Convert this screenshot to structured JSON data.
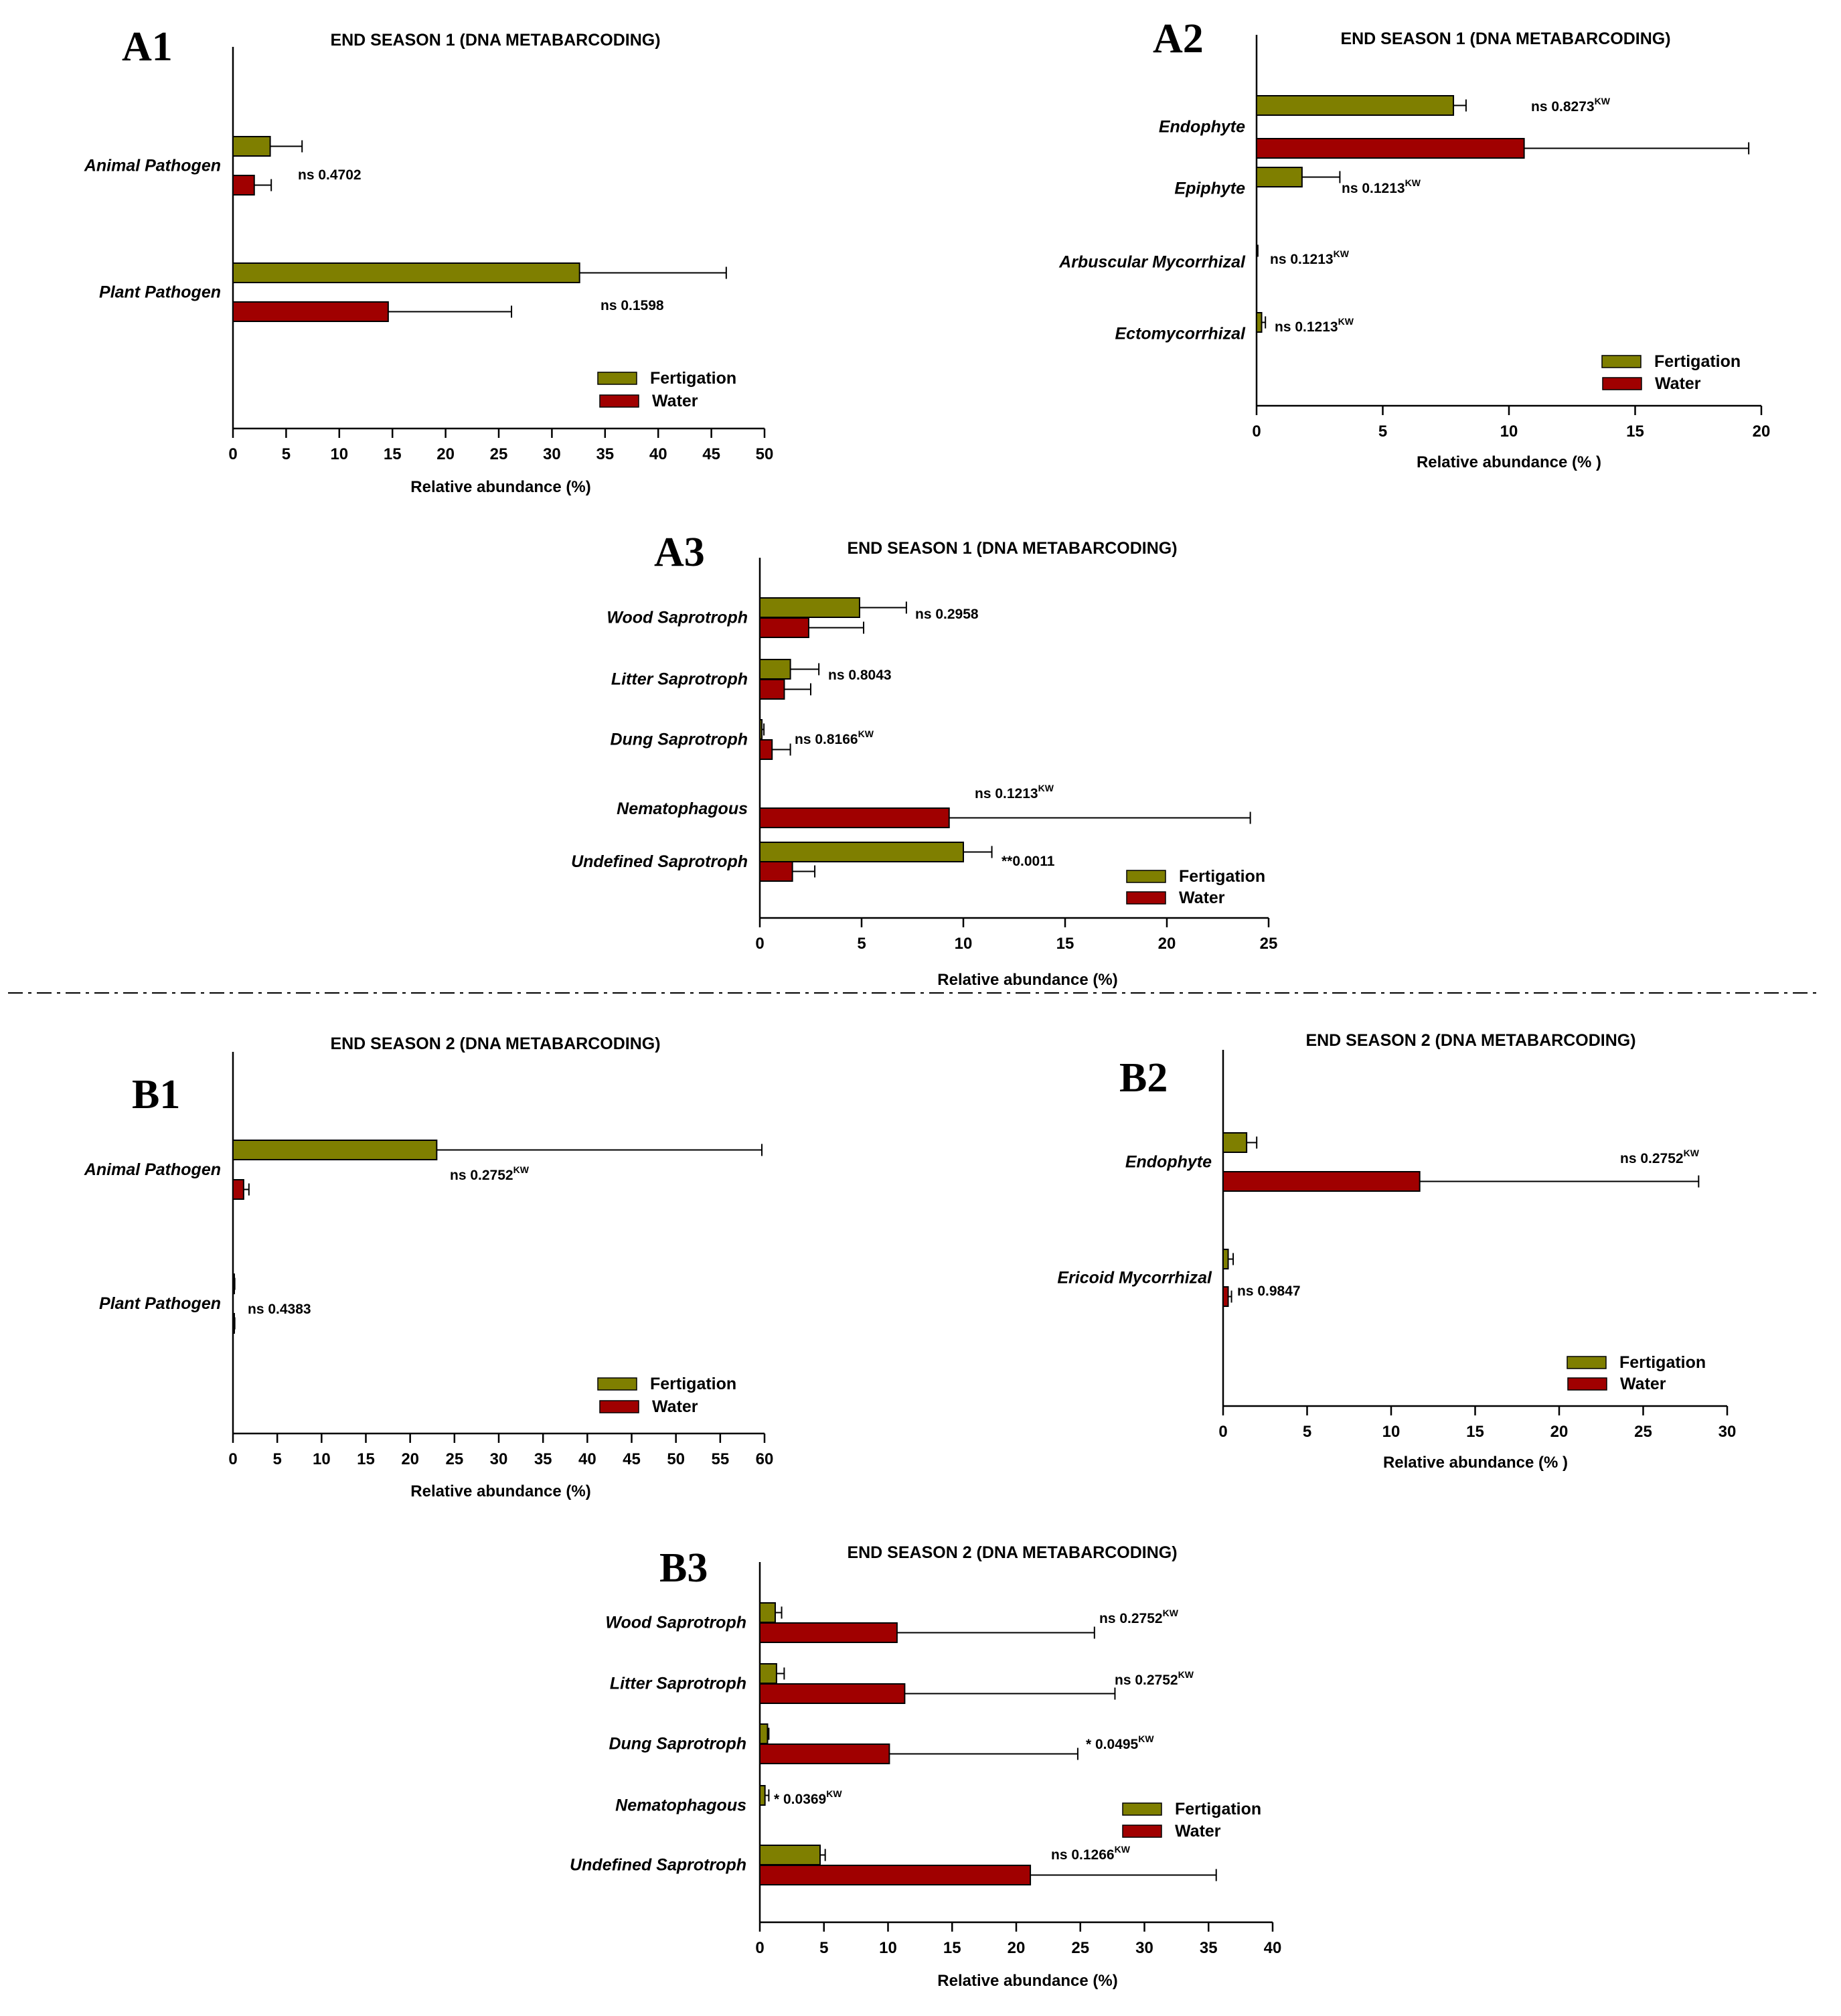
{
  "figure": {
    "separator_style": "dash-dot",
    "colors": {
      "fertigation": "#7f7f00",
      "water": "#a00000",
      "axis": "#000000"
    }
  },
  "chart_data": [
    {
      "id": "A1",
      "panel": "A1",
      "type": "bar",
      "orientation": "horizontal",
      "title": "END SEASON 1 (DNA METABARCODING)",
      "xlabel": "Relative abundance (%)",
      "xlim": [
        0,
        50
      ],
      "xticks": [
        0,
        5,
        10,
        15,
        20,
        25,
        30,
        35,
        40,
        45,
        50
      ],
      "categories": [
        "Animal Pathogen",
        "Plant Pathogen"
      ],
      "series": [
        {
          "name": "Fertigation",
          "color": "#7f7f00",
          "values": [
            3.5,
            32.6
          ],
          "errors": [
            3.0,
            13.8
          ]
        },
        {
          "name": "Water",
          "color": "#a00000",
          "values": [
            2.0,
            14.6
          ],
          "errors": [
            1.6,
            11.6
          ]
        }
      ],
      "annotations": [
        {
          "text": "ns 0.4702",
          "sup": ""
        },
        {
          "text": "ns 0.1598",
          "sup": ""
        }
      ],
      "legend": [
        "Fertigation",
        "Water"
      ],
      "legend_position": "bottom-right"
    },
    {
      "id": "A2",
      "panel": "A2",
      "type": "bar",
      "orientation": "horizontal",
      "title": "END SEASON 1 (DNA METABARCODING)",
      "xlabel": "Relative abundance (% )",
      "xlim": [
        0,
        20
      ],
      "xticks": [
        0,
        5,
        10,
        15,
        20
      ],
      "categories": [
        "Endophyte",
        "Epiphyte",
        "Arbuscular Mycorrhizal",
        "Ectomycorrhizal"
      ],
      "series": [
        {
          "name": "Fertigation",
          "color": "#7f7f00",
          "values": [
            7.8,
            1.8,
            0.0,
            0.2
          ],
          "errors": [
            0.5,
            1.5,
            0.05,
            0.15
          ]
        },
        {
          "name": "Water",
          "color": "#a00000",
          "values": [
            10.6,
            0,
            0,
            0
          ],
          "errors": [
            8.9,
            0,
            0,
            0
          ]
        }
      ],
      "annotations": [
        {
          "text": "ns 0.8273",
          "sup": "KW"
        },
        {
          "text": "ns 0.1213",
          "sup": "KW"
        },
        {
          "text": "ns 0.1213",
          "sup": "KW"
        },
        {
          "text": "ns 0.1213",
          "sup": "KW"
        }
      ],
      "legend": [
        "Fertigation",
        "Water"
      ],
      "legend_position": "bottom-right"
    },
    {
      "id": "A3",
      "panel": "A3",
      "type": "bar",
      "orientation": "horizontal",
      "title": "END SEASON 1 (DNA METABARCODING)",
      "xlabel": "Relative abundance (%)",
      "xlim": [
        0,
        25
      ],
      "xticks": [
        0,
        5,
        10,
        15,
        20,
        25
      ],
      "categories": [
        "Wood Saprotroph",
        "Litter Saprotroph",
        "Dung Saprotroph",
        "Nematophagous",
        "Undefined Saprotroph"
      ],
      "series": [
        {
          "name": "Fertigation",
          "color": "#7f7f00",
          "values": [
            4.9,
            1.5,
            0.1,
            0,
            10.0
          ],
          "errors": [
            2.3,
            1.4,
            0.1,
            0,
            1.4
          ]
        },
        {
          "name": "Water",
          "color": "#a00000",
          "values": [
            2.4,
            1.2,
            0.6,
            9.3,
            1.6
          ],
          "errors": [
            2.7,
            1.3,
            0.9,
            14.8,
            1.1
          ]
        }
      ],
      "annotations": [
        {
          "text": "ns 0.2958",
          "sup": ""
        },
        {
          "text": "ns 0.8043",
          "sup": ""
        },
        {
          "text": "ns 0.8166",
          "sup": "KW"
        },
        {
          "text": "ns 0.1213",
          "sup": "KW"
        },
        {
          "text": "**0.0011",
          "sup": ""
        }
      ],
      "legend": [
        "Fertigation",
        "Water"
      ],
      "legend_position": "bottom-right"
    },
    {
      "id": "B1",
      "panel": "B1",
      "type": "bar",
      "orientation": "horizontal",
      "title": "END SEASON 2 (DNA METABARCODING)",
      "xlabel": "Relative abundance (%)",
      "xlim": [
        0,
        60
      ],
      "xticks": [
        0,
        5,
        10,
        15,
        20,
        25,
        30,
        35,
        40,
        45,
        50,
        55,
        60
      ],
      "categories": [
        "Animal Pathogen",
        "Plant Pathogen"
      ],
      "series": [
        {
          "name": "Fertigation",
          "color": "#7f7f00",
          "values": [
            23.0,
            0.1
          ],
          "errors": [
            36.7,
            0.1
          ]
        },
        {
          "name": "Water",
          "color": "#a00000",
          "values": [
            1.2,
            0.1
          ],
          "errors": [
            0.6,
            0.1
          ]
        }
      ],
      "annotations": [
        {
          "text": "ns 0.2752",
          "sup": "KW"
        },
        {
          "text": "ns 0.4383",
          "sup": ""
        }
      ],
      "legend": [
        "Fertigation",
        "Water"
      ],
      "legend_position": "bottom-right"
    },
    {
      "id": "B2",
      "panel": "B2",
      "type": "bar",
      "orientation": "horizontal",
      "title": "END SEASON 2 (DNA METABARCODING)",
      "xlabel": "Relative abundance (% )",
      "xlim": [
        0,
        30
      ],
      "xticks": [
        0,
        5,
        10,
        15,
        20,
        25,
        30
      ],
      "categories": [
        "Endophyte",
        "Ericoid Mycorrhizal"
      ],
      "series": [
        {
          "name": "Fertigation",
          "color": "#7f7f00",
          "values": [
            1.4,
            0.3
          ],
          "errors": [
            0.6,
            0.3
          ]
        },
        {
          "name": "Water",
          "color": "#a00000",
          "values": [
            11.7,
            0.3
          ],
          "errors": [
            16.6,
            0.2
          ]
        }
      ],
      "annotations": [
        {
          "text": "ns 0.2752",
          "sup": "KW"
        },
        {
          "text": "ns 0.9847",
          "sup": ""
        }
      ],
      "legend": [
        "Fertigation",
        "Water"
      ],
      "legend_position": "bottom-right"
    },
    {
      "id": "B3",
      "panel": "B3",
      "type": "bar",
      "orientation": "horizontal",
      "title": "END SEASON 2 (DNA METABARCODING)",
      "xlabel": "Relative abundance (%)",
      "xlim": [
        0,
        40
      ],
      "xticks": [
        0,
        5,
        10,
        15,
        20,
        25,
        30,
        35,
        40
      ],
      "categories": [
        "Wood Saprotroph",
        "Litter Saprotroph",
        "Dung Saprotroph",
        "Nematophagous",
        "Undefined Saprotroph"
      ],
      "series": [
        {
          "name": "Fertigation",
          "color": "#7f7f00",
          "values": [
            1.2,
            1.3,
            0.6,
            0.4,
            4.7
          ],
          "errors": [
            0.5,
            0.6,
            0.1,
            0.3,
            0.4
          ]
        },
        {
          "name": "Water",
          "color": "#a00000",
          "values": [
            10.7,
            11.3,
            10.1,
            0,
            21.1
          ],
          "errors": [
            15.4,
            16.4,
            14.7,
            0,
            14.5
          ]
        }
      ],
      "annotations": [
        {
          "text": "ns 0.2752",
          "sup": "KW"
        },
        {
          "text": "ns 0.2752",
          "sup": "KW"
        },
        {
          "text": "* 0.0495",
          "sup": "KW"
        },
        {
          "text": "* 0.0369",
          "sup": "KW"
        },
        {
          "text": "ns 0.1266",
          "sup": "KW"
        }
      ],
      "legend": [
        "Fertigation",
        "Water"
      ],
      "legend_position": "right"
    }
  ]
}
